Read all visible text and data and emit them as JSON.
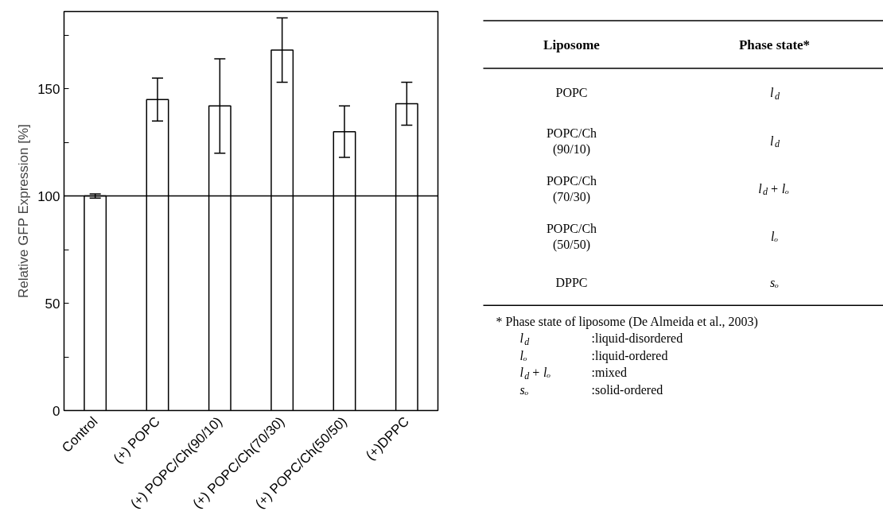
{
  "chart_data": [
    {
      "type": "bar",
      "ylabel": "Relative GFP Expression [%]",
      "categories": [
        "Control",
        "(+) POPC",
        "(+) POPC/Ch(90/10)",
        "(+) POPC/Ch(70/30)",
        "(+) POPC/Ch(50/50)",
        "(+)DPPC"
      ],
      "values": [
        100,
        145,
        142,
        168,
        130,
        143
      ],
      "errors": [
        1,
        10,
        22,
        15,
        12,
        10
      ],
      "color": "#ffffff",
      "ylim": [
        0,
        186
      ],
      "yticks": [
        0,
        {
          "value": 25,
          "label": null
        },
        50,
        {
          "value": 75,
          "label": null
        },
        100,
        {
          "value": 125,
          "label": null
        },
        150,
        {
          "value": 175,
          "label": null
        }
      ],
      "ref_lines": [
        {
          "axis": "y",
          "value": 100,
          "color": "#000000"
        }
      ]
    },
    {
      "type": "other",
      "annotations": [
        "Liposome",
        "Phase state*",
        "POPC",
        "l$_{d}$",
        "POPC/Ch\n(90/10)",
        "l$_{d}$",
        "POPC/Ch\n(70/30)",
        "l$_{d}$ + lₒ",
        "POPC/Ch\n(50/50)",
        "lₒ",
        "DPPC",
        "sₒ",
        "* Phase state of liposome (De Almeida et al., 2003)",
        "l$_{d}$",
        ":liquid-disordered",
        "lₒ",
        ":liquid-ordered",
        "l$_{d}$ + lₒ",
        ":mixed",
        "sₒ",
        ":solid-ordered"
      ]
    }
  ]
}
